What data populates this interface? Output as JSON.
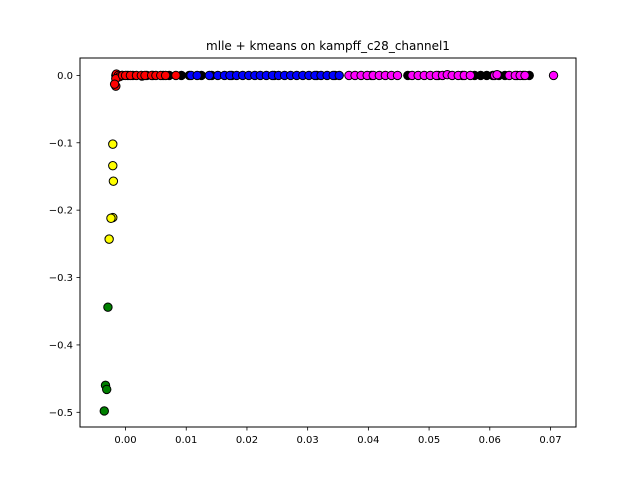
{
  "chart_data": {
    "type": "scatter",
    "title": "mlle + kmeans on kampff_c28_channel1",
    "xlabel": "",
    "ylabel": "",
    "xlim": [
      -0.0075,
      0.0742
    ],
    "ylim": [
      -0.5218,
      0.0258
    ],
    "x_ticks": [
      0.0,
      0.01,
      0.02,
      0.03,
      0.04,
      0.05,
      0.06,
      0.07
    ],
    "x_tick_labels": [
      "0.00",
      "0.01",
      "0.02",
      "0.03",
      "0.04",
      "0.05",
      "0.06",
      "0.07"
    ],
    "y_ticks": [
      0.0,
      -0.1,
      -0.2,
      -0.3,
      -0.4,
      -0.5
    ],
    "y_tick_labels": [
      "0.0",
      "−0.1",
      "−0.2",
      "−0.3",
      "−0.4",
      "−0.5"
    ],
    "grid": false,
    "edge_color": "#000000",
    "series": [
      {
        "color": "#000000",
        "points": [
          [
            -0.0016,
            0.0
          ],
          [
            -0.0014,
            0.001
          ],
          [
            -0.0012,
            0.0
          ],
          [
            -0.0009,
            -0.001
          ],
          [
            -0.0006,
            0.0
          ],
          [
            0.0004,
            0.0
          ],
          [
            0.0012,
            0.0
          ],
          [
            0.0027,
            -0.001
          ],
          [
            0.0035,
            0.0
          ],
          [
            0.0045,
            0.0
          ],
          [
            0.0062,
            0.0
          ],
          [
            0.0072,
            0.0
          ],
          [
            0.0092,
            0.0
          ],
          [
            0.0105,
            0.0
          ],
          [
            0.0125,
            0.0
          ],
          [
            0.0142,
            0.0
          ],
          [
            0.0175,
            0.0
          ],
          [
            0.0245,
            0.0
          ],
          [
            0.0315,
            0.0
          ],
          [
            0.0345,
            0.0
          ],
          [
            0.0405,
            0.0
          ],
          [
            0.0465,
            0.0
          ],
          [
            0.0515,
            0.0
          ],
          [
            0.0555,
            0.0
          ],
          [
            0.0575,
            0.0
          ],
          [
            0.0585,
            0.0
          ],
          [
            0.0595,
            0.0
          ],
          [
            0.0605,
            0.0
          ],
          [
            0.0615,
            0.0
          ],
          [
            0.0625,
            0.0
          ],
          [
            0.0645,
            0.0
          ],
          [
            0.0655,
            0.0
          ],
          [
            0.0665,
            0.0
          ]
        ]
      },
      {
        "color": "#ff0000",
        "points": [
          [
            -0.0015,
            0.002
          ],
          [
            -0.0012,
            0.0
          ],
          [
            -0.001,
            -0.002
          ],
          [
            -0.0016,
            -0.005
          ],
          [
            -0.0016,
            -0.016
          ],
          [
            -0.0018,
            -0.013
          ],
          [
            -0.0005,
            0.0
          ],
          [
            0.0,
            0.0
          ],
          [
            0.0008,
            0.0
          ],
          [
            0.0018,
            0.0
          ],
          [
            0.0026,
            0.0
          ],
          [
            0.0032,
            0.0
          ],
          [
            0.0043,
            0.0
          ],
          [
            0.005,
            0.0
          ],
          [
            0.0058,
            0.0
          ],
          [
            0.0066,
            0.0
          ],
          [
            0.0083,
            0.0
          ]
        ]
      },
      {
        "color": "#0000ff",
        "points": [
          [
            0.0108,
            0.0
          ],
          [
            0.0118,
            0.0
          ],
          [
            0.0138,
            0.0
          ],
          [
            0.0152,
            0.0
          ],
          [
            0.0163,
            0.0
          ],
          [
            0.0172,
            0.0
          ],
          [
            0.0183,
            0.0
          ],
          [
            0.0193,
            0.0
          ],
          [
            0.0203,
            0.0
          ],
          [
            0.0213,
            0.0
          ],
          [
            0.0222,
            0.0
          ],
          [
            0.0232,
            0.0
          ],
          [
            0.0242,
            0.0
          ],
          [
            0.0252,
            0.0
          ],
          [
            0.0262,
            0.0
          ],
          [
            0.0272,
            0.0
          ],
          [
            0.0282,
            0.0
          ],
          [
            0.0292,
            0.0
          ],
          [
            0.0302,
            0.0
          ],
          [
            0.0312,
            0.0
          ],
          [
            0.0322,
            0.0
          ],
          [
            0.0332,
            0.0
          ],
          [
            0.0342,
            0.0
          ],
          [
            0.0352,
            0.0
          ]
        ]
      },
      {
        "color": "#ff00ff",
        "points": [
          [
            0.0368,
            0.0
          ],
          [
            0.0378,
            0.0
          ],
          [
            0.0388,
            0.0
          ],
          [
            0.0398,
            0.0
          ],
          [
            0.0408,
            0.0
          ],
          [
            0.0418,
            0.0
          ],
          [
            0.0428,
            0.0
          ],
          [
            0.0438,
            0.0
          ],
          [
            0.0448,
            0.0
          ],
          [
            0.0472,
            0.0
          ],
          [
            0.0482,
            0.0
          ],
          [
            0.0492,
            0.0
          ],
          [
            0.0502,
            0.0
          ],
          [
            0.0512,
            0.0
          ],
          [
            0.0522,
            0.0
          ],
          [
            0.053,
            0.001
          ],
          [
            0.0538,
            0.0
          ],
          [
            0.0548,
            0.0
          ],
          [
            0.0558,
            0.0
          ],
          [
            0.0568,
            0.0
          ],
          [
            0.0608,
            0.0
          ],
          [
            0.0612,
            0.001
          ],
          [
            0.0632,
            0.0
          ],
          [
            0.0642,
            0.0
          ],
          [
            0.065,
            0.0
          ],
          [
            0.0658,
            0.0
          ],
          [
            0.0705,
            0.0
          ]
        ]
      },
      {
        "color": "#ffff00",
        "points": [
          [
            -0.0021,
            -0.102
          ],
          [
            -0.0021,
            -0.134
          ],
          [
            -0.002,
            -0.157
          ],
          [
            -0.0021,
            -0.211
          ],
          [
            -0.0024,
            -0.212
          ],
          [
            -0.0027,
            -0.243
          ]
        ]
      },
      {
        "color": "#008000",
        "points": [
          [
            -0.0029,
            -0.344
          ],
          [
            -0.0033,
            -0.46
          ],
          [
            -0.0031,
            -0.466
          ],
          [
            -0.0035,
            -0.498
          ]
        ]
      }
    ]
  }
}
